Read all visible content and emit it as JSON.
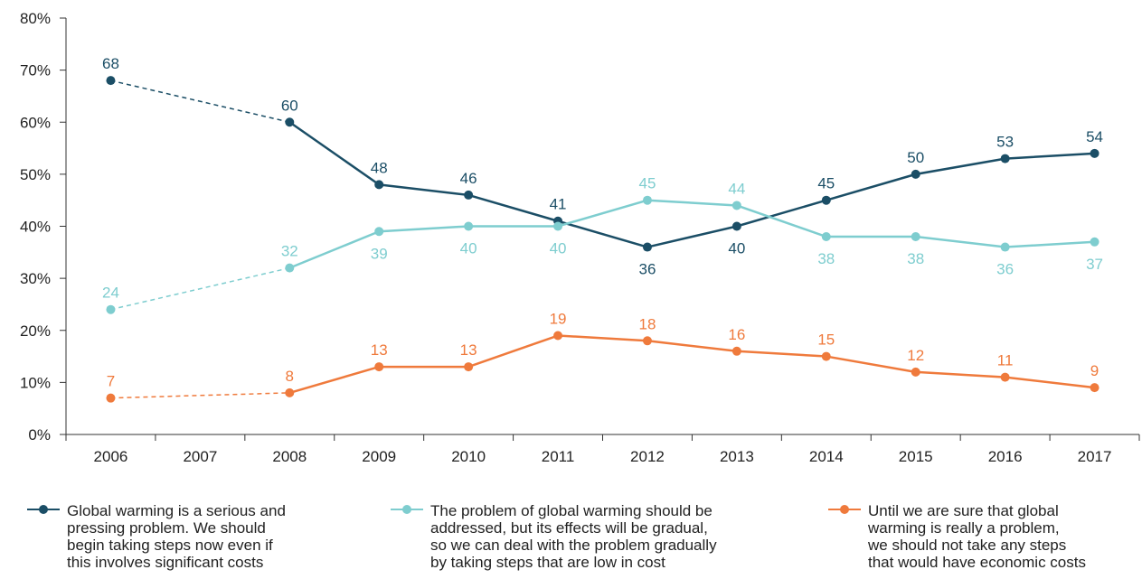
{
  "chart_data": {
    "type": "line",
    "x": [
      "2006",
      "2007",
      "2008",
      "2009",
      "2010",
      "2011",
      "2012",
      "2013",
      "2014",
      "2015",
      "2016",
      "2017"
    ],
    "ylim": [
      0,
      80
    ],
    "y_tick_labels": [
      "0%",
      "10%",
      "20%",
      "30%",
      "40%",
      "50%",
      "60%",
      "70%",
      "80%"
    ],
    "grid": false,
    "legend_position": "bottom",
    "series": [
      {
        "name": "Global warming is a serious and pressing problem. We should begin taking steps now even if this involves significant costs",
        "color": "#1b4e66",
        "points": [
          [
            2006,
            68
          ],
          [
            2008,
            60
          ],
          [
            2009,
            48
          ],
          [
            2010,
            46
          ],
          [
            2011,
            41
          ],
          [
            2012,
            36
          ],
          [
            2013,
            40
          ],
          [
            2014,
            45
          ],
          [
            2015,
            50
          ],
          [
            2016,
            53
          ],
          [
            2017,
            54
          ]
        ]
      },
      {
        "name": "The problem of global warming should be addressed, but its effects will be gradual, so we can deal with the problem gradually by taking steps that are low in cost",
        "color": "#7ecdcf",
        "points": [
          [
            2006,
            24
          ],
          [
            2008,
            32
          ],
          [
            2009,
            39
          ],
          [
            2010,
            40
          ],
          [
            2011,
            40
          ],
          [
            2012,
            45
          ],
          [
            2013,
            44
          ],
          [
            2014,
            38
          ],
          [
            2015,
            38
          ],
          [
            2016,
            36
          ],
          [
            2017,
            37
          ]
        ]
      },
      {
        "name": "Until we are sure that global warming is really a problem, we should not take any steps that would have economic costs",
        "color": "#ef7a3c",
        "points": [
          [
            2006,
            7
          ],
          [
            2008,
            8
          ],
          [
            2009,
            13
          ],
          [
            2010,
            13
          ],
          [
            2011,
            19
          ],
          [
            2012,
            18
          ],
          [
            2013,
            16
          ],
          [
            2014,
            15
          ],
          [
            2015,
            12
          ],
          [
            2016,
            11
          ],
          [
            2017,
            9
          ]
        ]
      }
    ]
  },
  "legend": [
    {
      "icon": "dark-teal-line-marker",
      "text": "Global warming is a serious and\npressing problem. We should\nbegin taking steps now even if\nthis involves significant costs"
    },
    {
      "icon": "light-teal-line-marker",
      "text": "The problem of global warming should be\naddressed, but its effects will be gradual,\nso we can deal with the problem gradually\nby taking steps that are low in cost"
    },
    {
      "icon": "orange-line-marker",
      "text": "Until we are sure that global\nwarming is really a problem,\nwe should not take any steps\nthat would have economic costs"
    }
  ]
}
